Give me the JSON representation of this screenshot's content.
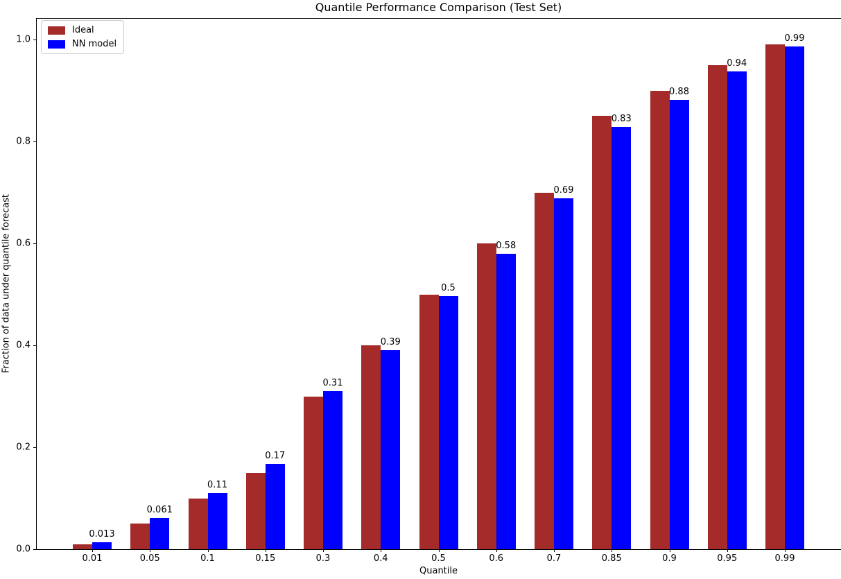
{
  "chart_data": {
    "type": "bar",
    "title": "Quantile Performance Comparison (Test Set)",
    "xlabel": "Quantile",
    "ylabel": "Fraction of data under quantile forecast",
    "categories": [
      "0.01",
      "0.05",
      "0.1",
      "0.15",
      "0.3",
      "0.4",
      "0.5",
      "0.6",
      "0.7",
      "0.85",
      "0.9",
      "0.95",
      "0.99"
    ],
    "series": [
      {
        "name": "Ideal",
        "color": "#a52a2a",
        "values": [
          0.01,
          0.05,
          0.1,
          0.15,
          0.3,
          0.4,
          0.5,
          0.6,
          0.7,
          0.85,
          0.9,
          0.95,
          0.99
        ]
      },
      {
        "name": "NN model",
        "color": "#0000ff",
        "values": [
          0.013,
          0.061,
          0.11,
          0.168,
          0.31,
          0.39,
          0.497,
          0.58,
          0.688,
          0.828,
          0.881,
          0.937,
          0.987
        ],
        "bar_labels": [
          "0.013",
          "0.061",
          "0.11",
          "0.17",
          "0.31",
          "0.39",
          "0.5",
          "0.58",
          "0.69",
          "0.83",
          "0.88",
          "0.94",
          "0.99"
        ]
      }
    ],
    "yticks": [
      "0.0",
      "0.2",
      "0.4",
      "0.6",
      "0.8",
      "1.0"
    ],
    "ylim": [
      0.0,
      1.042
    ],
    "legend_position": "upper left",
    "legend_border_color": "#cccccc",
    "grid": false
  }
}
